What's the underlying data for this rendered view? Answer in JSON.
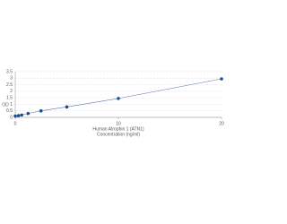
{
  "chart_data": {
    "type": "scatter",
    "x_label": [
      "Human Atrophin 1 (ATN1)",
      "Concentration (ng/ml)"
    ],
    "y_label": "OD",
    "x": [
      0,
      0.3125,
      0.625,
      1.25,
      2.5,
      5,
      10,
      20
    ],
    "series": [
      {
        "color": "#1f4e8c",
        "values": [
          0.1,
          0.13,
          0.18,
          0.3,
          0.5,
          0.8,
          1.45,
          2.95
        ]
      }
    ],
    "line_color": "#5a7ba8",
    "xlim": [
      0,
      20
    ],
    "xticks": [
      0,
      10,
      20
    ],
    "ylim": [
      0,
      3.5
    ],
    "yticks": [
      0,
      0.5,
      1,
      1.5,
      2,
      2.5,
      3,
      3.5
    ],
    "grid": true
  }
}
